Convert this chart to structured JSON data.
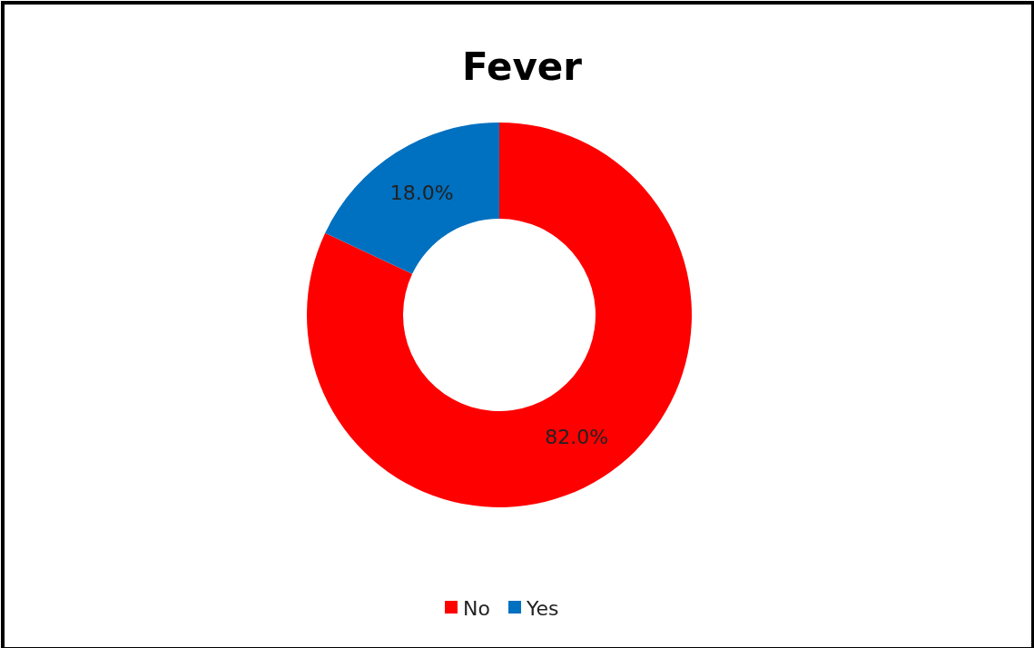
{
  "chart_data": {
    "type": "donut",
    "title": "Fever",
    "categories": [
      "No",
      "Yes"
    ],
    "values": [
      82,
      18
    ],
    "colors": [
      "#ff0000",
      "#0070c0"
    ],
    "value_labels": [
      "82.0%",
      "18.0%"
    ],
    "legend": "bottom"
  }
}
